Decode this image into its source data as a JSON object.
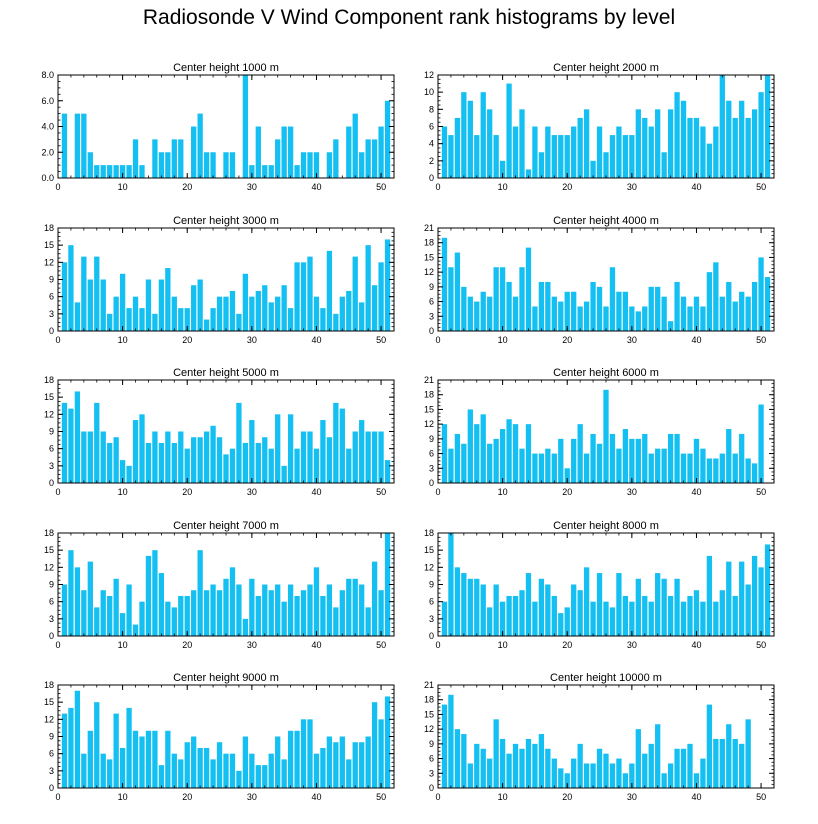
{
  "page": {
    "title": "Radiosonde V Wind Component rank histograms by level"
  },
  "style": {
    "bar_color": "#14c0f2",
    "axis_color": "#000000"
  },
  "chart_data": [
    {
      "type": "bar",
      "title": "Center height 1000 m",
      "x": [
        1,
        2,
        3,
        4,
        5,
        6,
        7,
        8,
        9,
        10,
        11,
        12,
        13,
        14,
        15,
        16,
        17,
        18,
        19,
        20,
        21,
        22,
        23,
        24,
        25,
        26,
        27,
        28,
        29,
        30,
        31,
        32,
        33,
        34,
        35,
        36,
        37,
        38,
        39,
        40,
        41,
        42,
        43,
        44,
        45,
        46,
        47,
        48,
        49,
        50,
        51
      ],
      "values": [
        5,
        0,
        5,
        5,
        2,
        1,
        1,
        1,
        1,
        1,
        1,
        3,
        1,
        0,
        3,
        2,
        2,
        3,
        3,
        0,
        4,
        5,
        2,
        2,
        0,
        2,
        2,
        0,
        8,
        1,
        4,
        1,
        1,
        3,
        4,
        4,
        1,
        2,
        2,
        2,
        0,
        2,
        3,
        0,
        4,
        5,
        2,
        3,
        3,
        4,
        6
      ],
      "xlim": [
        0,
        52
      ],
      "ylim": [
        0,
        8
      ],
      "yticks": [
        0,
        2,
        4,
        6,
        8
      ],
      "ytick_labels": [
        "0.0",
        "2.0",
        "4.0",
        "6.0",
        "8.0"
      ],
      "xticks": [
        0,
        10,
        20,
        30,
        40,
        50
      ],
      "xtick_labels": [
        "0",
        "10",
        "20",
        "30",
        "40",
        "50"
      ]
    },
    {
      "type": "bar",
      "title": "Center height 2000 m",
      "x": [
        1,
        2,
        3,
        4,
        5,
        6,
        7,
        8,
        9,
        10,
        11,
        12,
        13,
        14,
        15,
        16,
        17,
        18,
        19,
        20,
        21,
        22,
        23,
        24,
        25,
        26,
        27,
        28,
        29,
        30,
        31,
        32,
        33,
        34,
        35,
        36,
        37,
        38,
        39,
        40,
        41,
        42,
        43,
        44,
        45,
        46,
        47,
        48,
        49,
        50,
        51
      ],
      "values": [
        6,
        5,
        7,
        10,
        9,
        5,
        10,
        8,
        5,
        2,
        11,
        6,
        8,
        1,
        6,
        3,
        6,
        5,
        5,
        5,
        6,
        7,
        8,
        2,
        6,
        3,
        5,
        6,
        5,
        5,
        8,
        7,
        6,
        8,
        3,
        8,
        10,
        9,
        7,
        7,
        6,
        4,
        6,
        12,
        9,
        7,
        9,
        7,
        8,
        10,
        12
      ],
      "xlim": [
        0,
        52
      ],
      "ylim": [
        0,
        12
      ],
      "yticks": [
        0,
        2,
        4,
        6,
        8,
        10,
        12
      ],
      "ytick_labels": [
        "0",
        "2",
        "4",
        "6",
        "8",
        "10",
        "12"
      ],
      "xticks": [
        0,
        10,
        20,
        30,
        40,
        50
      ],
      "xtick_labels": [
        "0",
        "10",
        "20",
        "30",
        "40",
        "50"
      ]
    },
    {
      "type": "bar",
      "title": "Center height 3000 m",
      "x": [
        1,
        2,
        3,
        4,
        5,
        6,
        7,
        8,
        9,
        10,
        11,
        12,
        13,
        14,
        15,
        16,
        17,
        18,
        19,
        20,
        21,
        22,
        23,
        24,
        25,
        26,
        27,
        28,
        29,
        30,
        31,
        32,
        33,
        34,
        35,
        36,
        37,
        38,
        39,
        40,
        41,
        42,
        43,
        44,
        45,
        46,
        47,
        48,
        49,
        50,
        51
      ],
      "values": [
        12,
        15,
        5,
        13,
        9,
        13,
        9,
        3,
        6,
        10,
        4,
        6,
        4,
        9,
        3,
        9,
        11,
        6,
        4,
        4,
        8,
        9,
        2,
        4,
        6,
        6,
        7,
        3,
        10,
        6,
        7,
        8,
        5,
        6,
        8,
        4,
        12,
        12,
        13,
        6,
        4,
        14,
        3,
        6,
        7,
        13,
        5,
        15,
        8,
        12,
        16
      ],
      "xlim": [
        0,
        52
      ],
      "ylim": [
        0,
        18
      ],
      "yticks": [
        0,
        3,
        6,
        9,
        12,
        15,
        18
      ],
      "ytick_labels": [
        "0",
        "3",
        "6",
        "9",
        "12",
        "15",
        "18"
      ],
      "xticks": [
        0,
        10,
        20,
        30,
        40,
        50
      ],
      "xtick_labels": [
        "0",
        "10",
        "20",
        "30",
        "40",
        "50"
      ]
    },
    {
      "type": "bar",
      "title": "Center height 4000 m",
      "x": [
        1,
        2,
        3,
        4,
        5,
        6,
        7,
        8,
        9,
        10,
        11,
        12,
        13,
        14,
        15,
        16,
        17,
        18,
        19,
        20,
        21,
        22,
        23,
        24,
        25,
        26,
        27,
        28,
        29,
        30,
        31,
        32,
        33,
        34,
        35,
        36,
        37,
        38,
        39,
        40,
        41,
        42,
        43,
        44,
        45,
        46,
        47,
        48,
        49,
        50,
        51
      ],
      "values": [
        19,
        13,
        16,
        9,
        7,
        6,
        8,
        7,
        13,
        13,
        10,
        7,
        13,
        17,
        5,
        10,
        10,
        7,
        6,
        8,
        8,
        5,
        6,
        10,
        9,
        5,
        13,
        8,
        8,
        5,
        4,
        5,
        9,
        9,
        7,
        2,
        10,
        7,
        5,
        7,
        5,
        12,
        14,
        7,
        10,
        6,
        8,
        7,
        10,
        15,
        11
      ],
      "xlim": [
        0,
        52
      ],
      "ylim": [
        0,
        21
      ],
      "yticks": [
        0,
        3,
        6,
        9,
        12,
        15,
        18,
        21
      ],
      "ytick_labels": [
        "0",
        "3",
        "6",
        "9",
        "12",
        "15",
        "18",
        "21"
      ],
      "xticks": [
        0,
        10,
        20,
        30,
        40,
        50
      ],
      "xtick_labels": [
        "0",
        "10",
        "20",
        "30",
        "40",
        "50"
      ]
    },
    {
      "type": "bar",
      "title": "Center height 5000 m",
      "x": [
        1,
        2,
        3,
        4,
        5,
        6,
        7,
        8,
        9,
        10,
        11,
        12,
        13,
        14,
        15,
        16,
        17,
        18,
        19,
        20,
        21,
        22,
        23,
        24,
        25,
        26,
        27,
        28,
        29,
        30,
        31,
        32,
        33,
        34,
        35,
        36,
        37,
        38,
        39,
        40,
        41,
        42,
        43,
        44,
        45,
        46,
        47,
        48,
        49,
        50,
        51
      ],
      "values": [
        14,
        13,
        16,
        9,
        9,
        14,
        9,
        7,
        8,
        4,
        3,
        11,
        12,
        7,
        9,
        7,
        9,
        7,
        9,
        6,
        8,
        8,
        9,
        10,
        8,
        5,
        6,
        14,
        7,
        11,
        7,
        8,
        6,
        12,
        3,
        12,
        6,
        9,
        9,
        6,
        11,
        8,
        14,
        13,
        6,
        9,
        11,
        9,
        9,
        9,
        4
      ],
      "xlim": [
        0,
        52
      ],
      "ylim": [
        0,
        18
      ],
      "yticks": [
        0,
        3,
        6,
        9,
        12,
        15,
        18
      ],
      "ytick_labels": [
        "0",
        "3",
        "6",
        "9",
        "12",
        "15",
        "18"
      ],
      "xticks": [
        0,
        10,
        20,
        30,
        40,
        50
      ],
      "xtick_labels": [
        "0",
        "10",
        "20",
        "30",
        "40",
        "50"
      ]
    },
    {
      "type": "bar",
      "title": "Center height 6000 m",
      "x": [
        1,
        2,
        3,
        4,
        5,
        6,
        7,
        8,
        9,
        10,
        11,
        12,
        13,
        14,
        15,
        16,
        17,
        18,
        19,
        20,
        21,
        22,
        23,
        24,
        25,
        26,
        27,
        28,
        29,
        30,
        31,
        32,
        33,
        34,
        35,
        36,
        37,
        38,
        39,
        40,
        41,
        42,
        43,
        44,
        45,
        46,
        47,
        48,
        49,
        50,
        51
      ],
      "values": [
        12,
        7,
        10,
        8,
        15,
        12,
        14,
        8,
        9,
        11,
        13,
        12,
        7,
        12,
        6,
        6,
        7,
        6,
        9,
        3,
        9,
        12,
        6,
        10,
        8,
        19,
        10,
        7,
        11,
        9,
        9,
        10,
        6,
        7,
        7,
        10,
        10,
        6,
        6,
        9,
        7,
        5,
        5,
        6,
        11,
        6,
        10,
        5,
        4,
        16,
        0
      ],
      "xlim": [
        0,
        52
      ],
      "ylim": [
        0,
        21
      ],
      "yticks": [
        0,
        3,
        6,
        9,
        12,
        15,
        18,
        21
      ],
      "ytick_labels": [
        "0",
        "3",
        "6",
        "9",
        "12",
        "15",
        "18",
        "21"
      ],
      "xticks": [
        0,
        10,
        20,
        30,
        40,
        50
      ],
      "xtick_labels": [
        "0",
        "10",
        "20",
        "30",
        "40",
        "50"
      ]
    },
    {
      "type": "bar",
      "title": "Center height 7000 m",
      "x": [
        1,
        2,
        3,
        4,
        5,
        6,
        7,
        8,
        9,
        10,
        11,
        12,
        13,
        14,
        15,
        16,
        17,
        18,
        19,
        20,
        21,
        22,
        23,
        24,
        25,
        26,
        27,
        28,
        29,
        30,
        31,
        32,
        33,
        34,
        35,
        36,
        37,
        38,
        39,
        40,
        41,
        42,
        43,
        44,
        45,
        46,
        47,
        48,
        49,
        50,
        51
      ],
      "values": [
        9,
        15,
        12,
        8,
        13,
        5,
        8,
        7,
        10,
        4,
        9,
        2,
        6,
        14,
        15,
        11,
        6,
        5,
        7,
        7,
        8,
        15,
        8,
        9,
        8,
        10,
        12,
        9,
        3,
        10,
        7,
        9,
        8,
        9,
        6,
        9,
        7,
        8,
        9,
        12,
        7,
        9,
        5,
        8,
        10,
        10,
        9,
        5,
        13,
        8,
        18
      ],
      "xlim": [
        0,
        52
      ],
      "ylim": [
        0,
        18
      ],
      "yticks": [
        0,
        3,
        6,
        9,
        12,
        15,
        18
      ],
      "ytick_labels": [
        "0",
        "3",
        "6",
        "9",
        "12",
        "15",
        "18"
      ],
      "xticks": [
        0,
        10,
        20,
        30,
        40,
        50
      ],
      "xtick_labels": [
        "0",
        "10",
        "20",
        "30",
        "40",
        "50"
      ]
    },
    {
      "type": "bar",
      "title": "Center height 8000 m",
      "x": [
        1,
        2,
        3,
        4,
        5,
        6,
        7,
        8,
        9,
        10,
        11,
        12,
        13,
        14,
        15,
        16,
        17,
        18,
        19,
        20,
        21,
        22,
        23,
        24,
        25,
        26,
        27,
        28,
        29,
        30,
        31,
        32,
        33,
        34,
        35,
        36,
        37,
        38,
        39,
        40,
        41,
        42,
        43,
        44,
        45,
        46,
        47,
        48,
        49,
        50,
        51
      ],
      "values": [
        6,
        18,
        12,
        11,
        10,
        10,
        9,
        5,
        9,
        6,
        7,
        7,
        8,
        11,
        6,
        10,
        9,
        7,
        4,
        5,
        9,
        8,
        12,
        6,
        11,
        6,
        5,
        11,
        7,
        6,
        10,
        7,
        6,
        11,
        10,
        7,
        10,
        6,
        7,
        8,
        6,
        14,
        6,
        8,
        13,
        7,
        13,
        9,
        14,
        12,
        16
      ],
      "xlim": [
        0,
        52
      ],
      "ylim": [
        0,
        18
      ],
      "yticks": [
        0,
        3,
        6,
        9,
        12,
        15,
        18
      ],
      "ytick_labels": [
        "0",
        "3",
        "6",
        "9",
        "12",
        "15",
        "18"
      ],
      "xticks": [
        0,
        10,
        20,
        30,
        40,
        50
      ],
      "xtick_labels": [
        "0",
        "10",
        "20",
        "30",
        "40",
        "50"
      ]
    },
    {
      "type": "bar",
      "title": "Center height 9000 m",
      "x": [
        1,
        2,
        3,
        4,
        5,
        6,
        7,
        8,
        9,
        10,
        11,
        12,
        13,
        14,
        15,
        16,
        17,
        18,
        19,
        20,
        21,
        22,
        23,
        24,
        25,
        26,
        27,
        28,
        29,
        30,
        31,
        32,
        33,
        34,
        35,
        36,
        37,
        38,
        39,
        40,
        41,
        42,
        43,
        44,
        45,
        46,
        47,
        48,
        49,
        50,
        51
      ],
      "values": [
        13,
        14,
        17,
        6,
        10,
        15,
        6,
        5,
        13,
        7,
        14,
        10,
        9,
        10,
        10,
        4,
        10,
        6,
        5,
        8,
        9,
        7,
        7,
        5,
        8,
        6,
        6,
        3,
        9,
        6,
        4,
        4,
        6,
        9,
        5,
        10,
        10,
        12,
        12,
        6,
        7,
        9,
        8,
        9,
        5,
        8,
        8,
        9,
        15,
        12,
        16
      ],
      "xlim": [
        0,
        52
      ],
      "ylim": [
        0,
        18
      ],
      "yticks": [
        0,
        3,
        6,
        9,
        12,
        15,
        18
      ],
      "ytick_labels": [
        "0",
        "3",
        "6",
        "9",
        "12",
        "15",
        "18"
      ],
      "xticks": [
        0,
        10,
        20,
        30,
        40,
        50
      ],
      "xtick_labels": [
        "0",
        "10",
        "20",
        "30",
        "40",
        "50"
      ]
    },
    {
      "type": "bar",
      "title": "Center height 10000 m",
      "x": [
        1,
        2,
        3,
        4,
        5,
        6,
        7,
        8,
        9,
        10,
        11,
        12,
        13,
        14,
        15,
        16,
        17,
        18,
        19,
        20,
        21,
        22,
        23,
        24,
        25,
        26,
        27,
        28,
        29,
        30,
        31,
        32,
        33,
        34,
        35,
        36,
        37,
        38,
        39,
        40,
        41,
        42,
        43,
        44,
        45,
        46,
        47,
        48,
        49,
        50,
        51
      ],
      "values": [
        17,
        19,
        12,
        11,
        5,
        9,
        8,
        6,
        14,
        10,
        7,
        9,
        8,
        10,
        9,
        11,
        8,
        6,
        4,
        3,
        6,
        9,
        5,
        5,
        8,
        7,
        5,
        6,
        3,
        5,
        12,
        7,
        9,
        13,
        3,
        5,
        8,
        8,
        9,
        3,
        6,
        17,
        10,
        10,
        13,
        10,
        9,
        14,
        0,
        0,
        0
      ],
      "xlim": [
        0,
        52
      ],
      "ylim": [
        0,
        21
      ],
      "yticks": [
        0,
        3,
        6,
        9,
        12,
        15,
        18,
        21
      ],
      "ytick_labels": [
        "0",
        "3",
        "6",
        "9",
        "12",
        "15",
        "18",
        "21"
      ],
      "xticks": [
        0,
        10,
        20,
        30,
        40,
        50
      ],
      "xtick_labels": [
        "0",
        "10",
        "20",
        "30",
        "40",
        "50"
      ]
    }
  ]
}
